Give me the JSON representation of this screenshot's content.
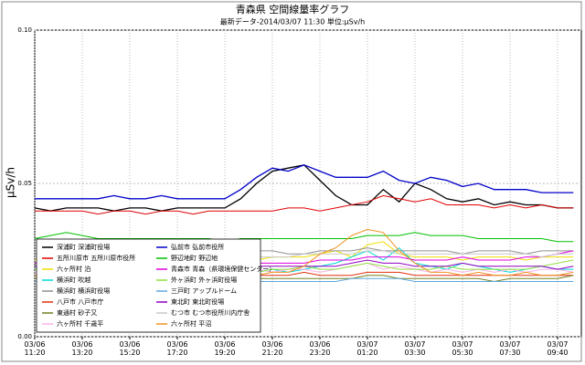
{
  "chart_data": {
    "type": "line",
    "title": "青森県 空間線量率グラフ",
    "subtitle": "最新データ-2014/03/07 11:30 単位:μSv/h",
    "y_label": "μSv/h",
    "categories": [
      "03/06 11:20",
      null,
      null,
      "03/06 13:20",
      null,
      null,
      "03/06 15:20",
      null,
      null,
      "03/06 17:20",
      null,
      null,
      "03/06 19:20",
      null,
      null,
      "03/06 21:20",
      null,
      null,
      "03/06 23:20",
      null,
      null,
      "03/07 01:20",
      null,
      null,
      "03/07 03:30",
      null,
      null,
      "03/07 05:30",
      null,
      null,
      "03/07 07:30",
      null,
      null,
      "03/07 09:40",
      null
    ],
    "ylim": [
      0,
      0.1
    ],
    "yticks": [
      {
        "value": 0,
        "label": "0.00"
      },
      {
        "value": 0.05,
        "label": "0.05"
      },
      {
        "value": 0.1,
        "label": "0.10"
      }
    ],
    "grid": true,
    "legend": "lower left",
    "series": [
      {
        "name": "深浦町 深浦町役場",
        "color": "#000000",
        "values": [
          0.042,
          0.041,
          0.042,
          0.042,
          0.042,
          0.041,
          0.042,
          0.042,
          0.041,
          0.042,
          0.042,
          0.042,
          0.042,
          0.045,
          0.05,
          0.054,
          0.055,
          0.056,
          0.051,
          0.046,
          0.043,
          0.043,
          0.048,
          0.044,
          0.05,
          0.048,
          0.045,
          0.044,
          0.045,
          0.043,
          0.044,
          0.043,
          0.043,
          0.042,
          0.042
        ]
      },
      {
        "name": "五所川原市 五所川原市役所",
        "color": "#e00000",
        "values": [
          0.041,
          0.041,
          0.041,
          0.041,
          0.04,
          0.041,
          0.041,
          0.04,
          0.041,
          0.041,
          0.04,
          0.041,
          0.041,
          0.041,
          0.041,
          0.041,
          0.042,
          0.042,
          0.041,
          0.042,
          0.043,
          0.044,
          0.046,
          0.045,
          0.044,
          0.045,
          0.043,
          0.043,
          0.043,
          0.042,
          0.043,
          0.042,
          0.043,
          0.042,
          0.042
        ]
      },
      {
        "name": "六ヶ所村 泊",
        "color": "#f0e000",
        "values": [
          0.025,
          0.026,
          0.025,
          0.026,
          0.026,
          0.025,
          0.026,
          0.026,
          0.026,
          0.025,
          0.026,
          0.026,
          0.026,
          0.026,
          0.025,
          0.026,
          0.026,
          0.026,
          0.027,
          0.028,
          0.026,
          0.03,
          0.031,
          0.027,
          0.026,
          0.026,
          0.026,
          0.025,
          0.026,
          0.026,
          0.026,
          0.025,
          0.026,
          0.026,
          0.026
        ]
      },
      {
        "name": "横浜町 吹越",
        "color": "#00d8d8",
        "values": [
          0.022,
          0.023,
          0.024,
          0.022,
          0.023,
          0.025,
          0.029,
          0.026,
          0.023,
          0.022,
          0.021,
          0.022,
          0.023,
          0.022,
          0.021,
          0.022,
          0.021,
          0.022,
          0.023,
          0.024,
          0.026,
          0.028,
          0.025,
          0.029,
          0.024,
          0.023,
          0.022,
          0.024,
          0.023,
          0.022,
          0.021,
          0.022,
          0.023,
          0.022,
          0.022
        ]
      },
      {
        "name": "横浜町 横浜町役場",
        "color": "#909090",
        "values": [
          0.027,
          0.027,
          0.027,
          0.028,
          0.027,
          0.027,
          0.027,
          0.028,
          0.027,
          0.027,
          0.027,
          0.027,
          0.027,
          0.027,
          0.028,
          0.028,
          0.027,
          0.027,
          0.028,
          0.028,
          0.028,
          0.029,
          0.028,
          0.028,
          0.028,
          0.028,
          0.028,
          0.027,
          0.028,
          0.028,
          0.028,
          0.027,
          0.028,
          0.028,
          0.028
        ]
      },
      {
        "name": "八戸市 八戸市庁",
        "color": "#e03010",
        "values": [
          0.02,
          0.02,
          0.02,
          0.02,
          0.02,
          0.02,
          0.02,
          0.02,
          0.02,
          0.02,
          0.02,
          0.02,
          0.02,
          0.02,
          0.02,
          0.02,
          0.02,
          0.021,
          0.02,
          0.02,
          0.02,
          0.021,
          0.021,
          0.021,
          0.02,
          0.02,
          0.02,
          0.02,
          0.02,
          0.02,
          0.02,
          0.02,
          0.02,
          0.02,
          0.02
        ]
      },
      {
        "name": "東通村 砂子又",
        "color": "#708020",
        "values": [
          0.019,
          0.019,
          0.019,
          0.019,
          0.019,
          0.019,
          0.019,
          0.019,
          0.019,
          0.019,
          0.019,
          0.019,
          0.019,
          0.019,
          0.019,
          0.019,
          0.019,
          0.019,
          0.019,
          0.019,
          0.019,
          0.02,
          0.02,
          0.019,
          0.019,
          0.019,
          0.019,
          0.019,
          0.019,
          0.018,
          0.019,
          0.019,
          0.019,
          0.019,
          0.02
        ]
      },
      {
        "name": "六ヶ所村 千歳平",
        "color": "#f8b0e8",
        "values": [
          0.021,
          0.022,
          0.021,
          0.021,
          0.022,
          0.022,
          0.021,
          0.021,
          0.022,
          0.021,
          0.022,
          0.021,
          0.021,
          0.022,
          0.022,
          0.021,
          0.022,
          0.022,
          0.021,
          0.022,
          0.023,
          0.024,
          0.022,
          0.023,
          0.022,
          0.021,
          0.022,
          0.021,
          0.022,
          0.021,
          0.022,
          0.021,
          0.022,
          0.022,
          0.021
        ]
      },
      {
        "name": "弘前市 弘前市役所",
        "color": "#0000c8",
        "values": [
          0.045,
          0.045,
          0.045,
          0.045,
          0.045,
          0.046,
          0.045,
          0.045,
          0.046,
          0.045,
          0.045,
          0.045,
          0.045,
          0.048,
          0.052,
          0.055,
          0.054,
          0.056,
          0.054,
          0.052,
          0.052,
          0.052,
          0.054,
          0.051,
          0.05,
          0.052,
          0.051,
          0.049,
          0.05,
          0.048,
          0.048,
          0.048,
          0.047,
          0.047,
          0.047
        ]
      },
      {
        "name": "野辺地町 野辺地",
        "color": "#00c000",
        "values": [
          0.032,
          0.033,
          0.034,
          0.033,
          0.032,
          0.032,
          0.032,
          0.032,
          0.032,
          0.032,
          0.032,
          0.032,
          0.031,
          0.032,
          0.032,
          0.032,
          0.032,
          0.032,
          0.032,
          0.032,
          0.032,
          0.033,
          0.033,
          0.033,
          0.034,
          0.033,
          0.033,
          0.033,
          0.032,
          0.032,
          0.032,
          0.032,
          0.032,
          0.031,
          0.031
        ]
      },
      {
        "name": "青森市 青森（県環境保健センター）",
        "color": "#e000e0",
        "values": [
          0.024,
          0.024,
          0.025,
          0.024,
          0.024,
          0.024,
          0.025,
          0.024,
          0.024,
          0.024,
          0.024,
          0.023,
          0.024,
          0.024,
          0.024,
          0.024,
          0.024,
          0.024,
          0.025,
          0.025,
          0.025,
          0.026,
          0.026,
          0.026,
          0.025,
          0.025,
          0.025,
          0.026,
          0.025,
          0.025,
          0.025,
          0.026,
          0.026,
          0.027,
          0.028
        ]
      },
      {
        "name": "外ヶ浜町 外ヶ浜町役場",
        "color": "#90e040",
        "values": [
          0.022,
          0.022,
          0.021,
          0.022,
          0.022,
          0.022,
          0.022,
          0.021,
          0.022,
          0.022,
          0.022,
          0.021,
          0.022,
          0.022,
          0.021,
          0.022,
          0.022,
          0.023,
          0.022,
          0.022,
          0.023,
          0.024,
          0.023,
          0.022,
          0.022,
          0.022,
          0.023,
          0.022,
          0.022,
          0.022,
          0.022,
          0.022,
          0.023,
          0.024,
          0.025
        ]
      },
      {
        "name": "三戸町 アップルドーム",
        "color": "#60a8e0",
        "values": [
          0.018,
          0.018,
          0.018,
          0.018,
          0.018,
          0.018,
          0.018,
          0.018,
          0.018,
          0.018,
          0.018,
          0.018,
          0.018,
          0.018,
          0.018,
          0.018,
          0.018,
          0.018,
          0.018,
          0.018,
          0.019,
          0.019,
          0.019,
          0.019,
          0.018,
          0.018,
          0.018,
          0.018,
          0.018,
          0.018,
          0.018,
          0.018,
          0.018,
          0.018,
          0.018
        ]
      },
      {
        "name": "東北町 東北町役場",
        "color": "#9000c0",
        "values": [
          0.023,
          0.023,
          0.023,
          0.022,
          0.023,
          0.023,
          0.023,
          0.023,
          0.023,
          0.022,
          0.023,
          0.023,
          0.023,
          0.023,
          0.023,
          0.023,
          0.023,
          0.023,
          0.023,
          0.023,
          0.024,
          0.025,
          0.024,
          0.024,
          0.023,
          0.023,
          0.023,
          0.024,
          0.023,
          0.023,
          0.023,
          0.023,
          0.023,
          0.022,
          0.023
        ]
      },
      {
        "name": "むつ市 むつ市役所川内庁舎",
        "color": "#c8c8c8",
        "values": [
          0.026,
          0.026,
          0.026,
          0.026,
          0.027,
          0.027,
          0.026,
          0.026,
          0.026,
          0.026,
          0.026,
          0.026,
          0.026,
          0.026,
          0.026,
          0.026,
          0.026,
          0.027,
          0.027,
          0.027,
          0.027,
          0.028,
          0.028,
          0.027,
          0.027,
          0.027,
          0.027,
          0.027,
          0.027,
          0.027,
          0.027,
          0.027,
          0.026,
          0.027,
          0.027
        ]
      },
      {
        "name": "六ヶ所村 平沼",
        "color": "#f09020",
        "values": [
          0.02,
          0.02,
          0.021,
          0.02,
          0.02,
          0.02,
          0.02,
          0.021,
          0.02,
          0.02,
          0.02,
          0.02,
          0.021,
          0.02,
          0.02,
          0.021,
          0.021,
          0.023,
          0.027,
          0.029,
          0.033,
          0.035,
          0.034,
          0.028,
          0.024,
          0.021,
          0.021,
          0.02,
          0.021,
          0.02,
          0.02,
          0.021,
          0.02,
          0.02,
          0.021
        ]
      }
    ]
  }
}
